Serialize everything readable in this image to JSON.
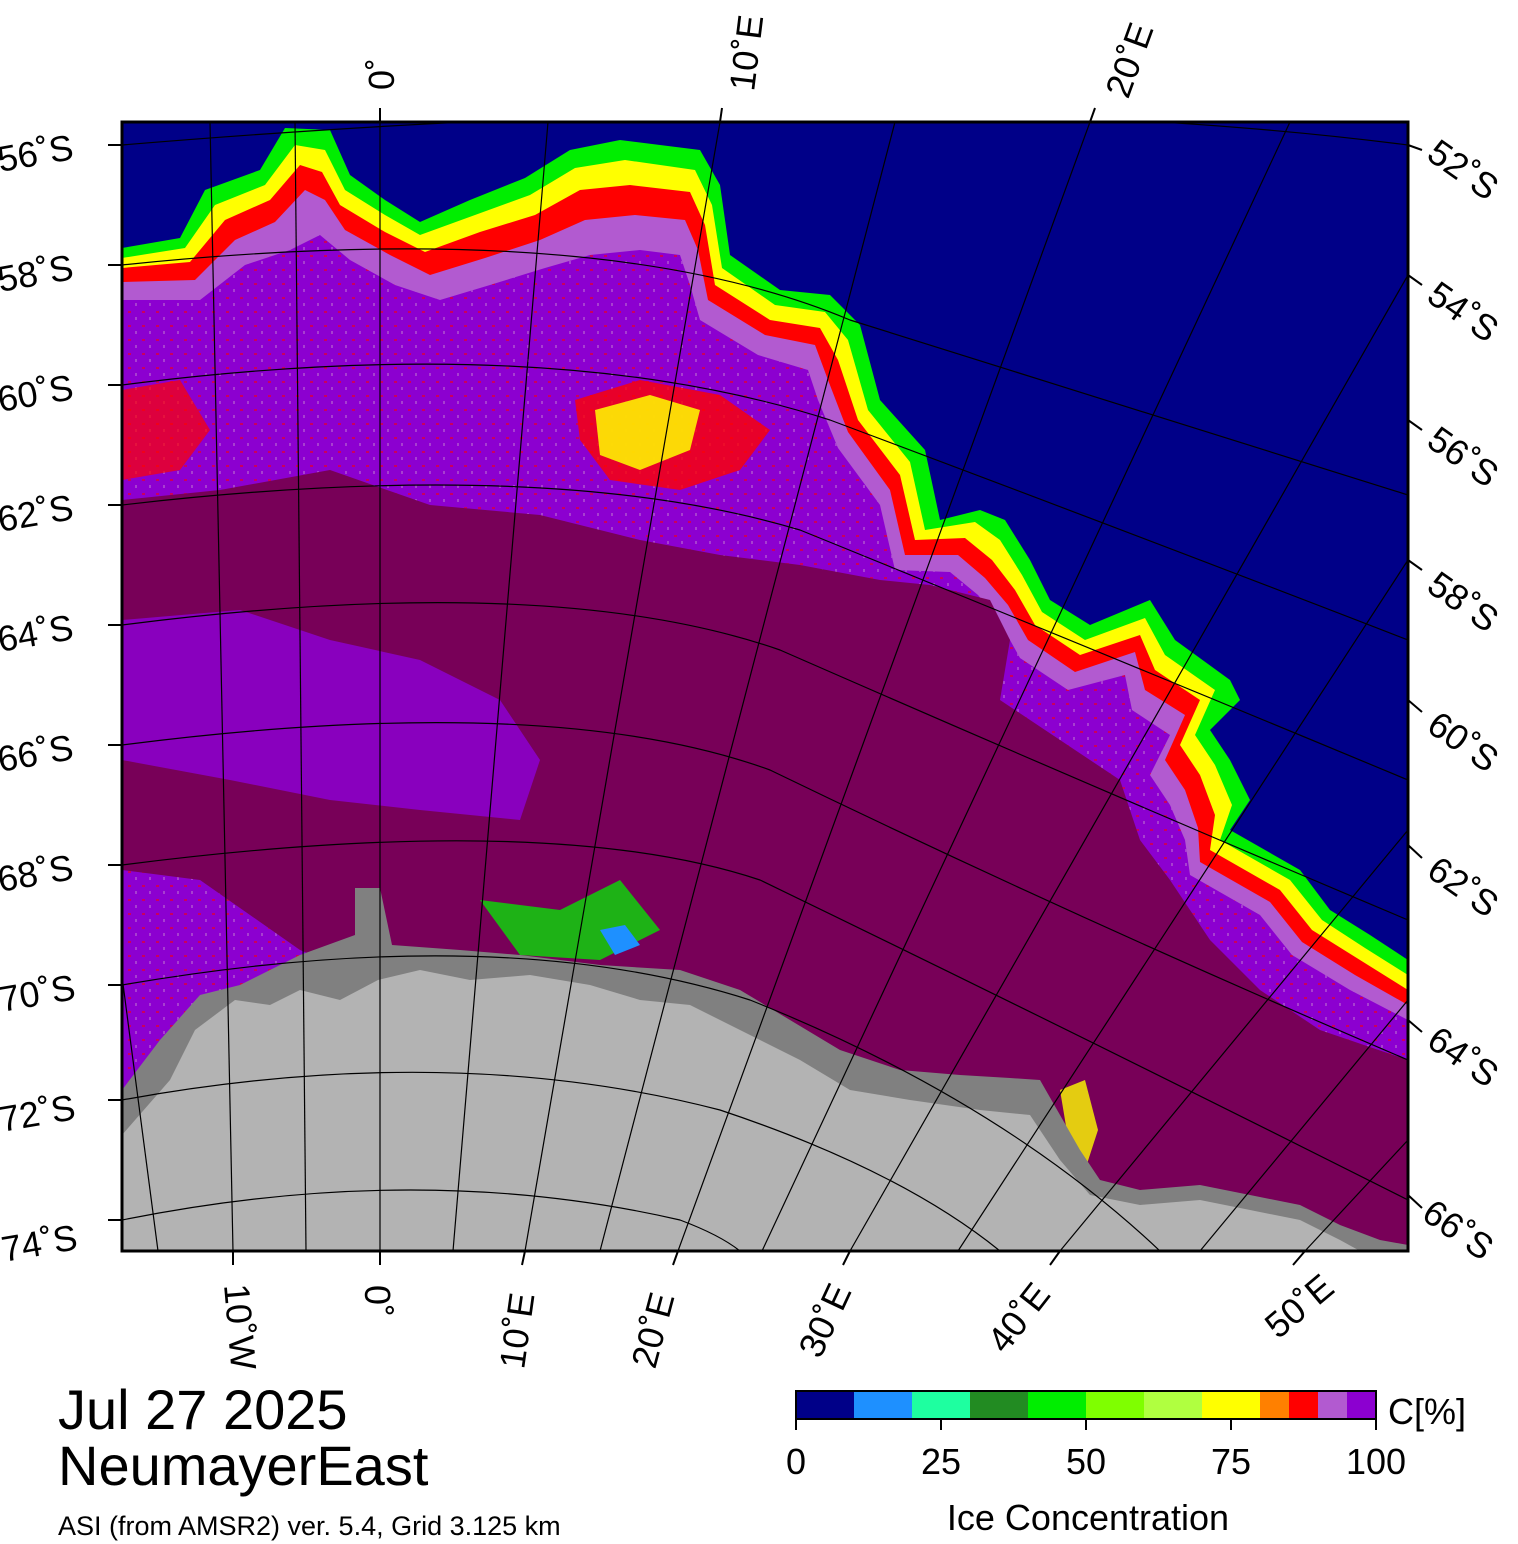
{
  "header": {
    "date": "Jul 27 2025",
    "region": "NeumayerEast",
    "source": "ASI (from AMSR2) ver. 5.4,  Grid 3.125 km"
  },
  "map": {
    "top_lon_labels": [
      "0˚",
      "10˚E",
      "20˚E"
    ],
    "bottom_lon_labels": [
      "10˚W",
      "0˚",
      "10˚E",
      "20˚E",
      "30˚E",
      "40˚E",
      "50˚E"
    ],
    "left_lat_labels": [
      "56˚S",
      "58˚S",
      "60˚S",
      "62˚S",
      "64˚S",
      "66˚S",
      "68˚S",
      "70˚S",
      "72˚S",
      "74˚S"
    ],
    "right_lat_labels": [
      "52˚S",
      "54˚S",
      "56˚S",
      "58˚S",
      "60˚S",
      "62˚S",
      "64˚S",
      "66˚S"
    ],
    "colors": {
      "open_water": "#000088",
      "land": "#b3b3b3",
      "ice_shelf": "#808080",
      "ice_high": "#780058",
      "ice_mid": "#8c00d0",
      "ice_light": "#b25ad0",
      "ice_edge_red": "#ff0000",
      "ice_edge_yellow": "#ffff00",
      "ice_edge_green": "#00ee00"
    }
  },
  "colorbar": {
    "title": "Ice Concentration",
    "unit": "C[%]",
    "ticks": [
      "0",
      "25",
      "50",
      "75",
      "100"
    ],
    "colors": [
      "#000088",
      "#1e90ff",
      "#1effa0",
      "#228b22",
      "#00ee00",
      "#7fff00",
      "#b0ff40",
      "#ffff00",
      "#ff8000",
      "#ff0000",
      "#b25ad0",
      "#8c00d0"
    ]
  }
}
